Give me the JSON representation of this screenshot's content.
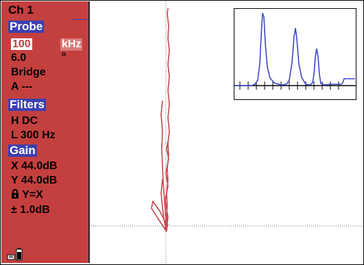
{
  "panel": {
    "channel": "Ch 1",
    "probe_header": "Probe",
    "frequency_value": "100",
    "frequency_unit": "kHz",
    "probe_line2": "6.0",
    "probe_circle": "o",
    "probe_type": "Bridge",
    "probe_a": "A ---",
    "filters_header": "Filters",
    "filter_h": "H DC",
    "filter_l": "L 300 Hz",
    "gain_header": "Gain",
    "gain_x": "X 44.0dB",
    "gain_y": "Y 44.0dB",
    "gain_lock": "Y=X",
    "gain_step": "± 1.0dB"
  },
  "icons": {
    "lock": "lock-icon",
    "battery": "battery-icon",
    "hold": "hold-icon"
  },
  "colors": {
    "panel_bg": "#c4403f",
    "header_bg": "#3d3faf",
    "trace": "#c8464a",
    "inset_trace": "#3b47c8"
  }
}
